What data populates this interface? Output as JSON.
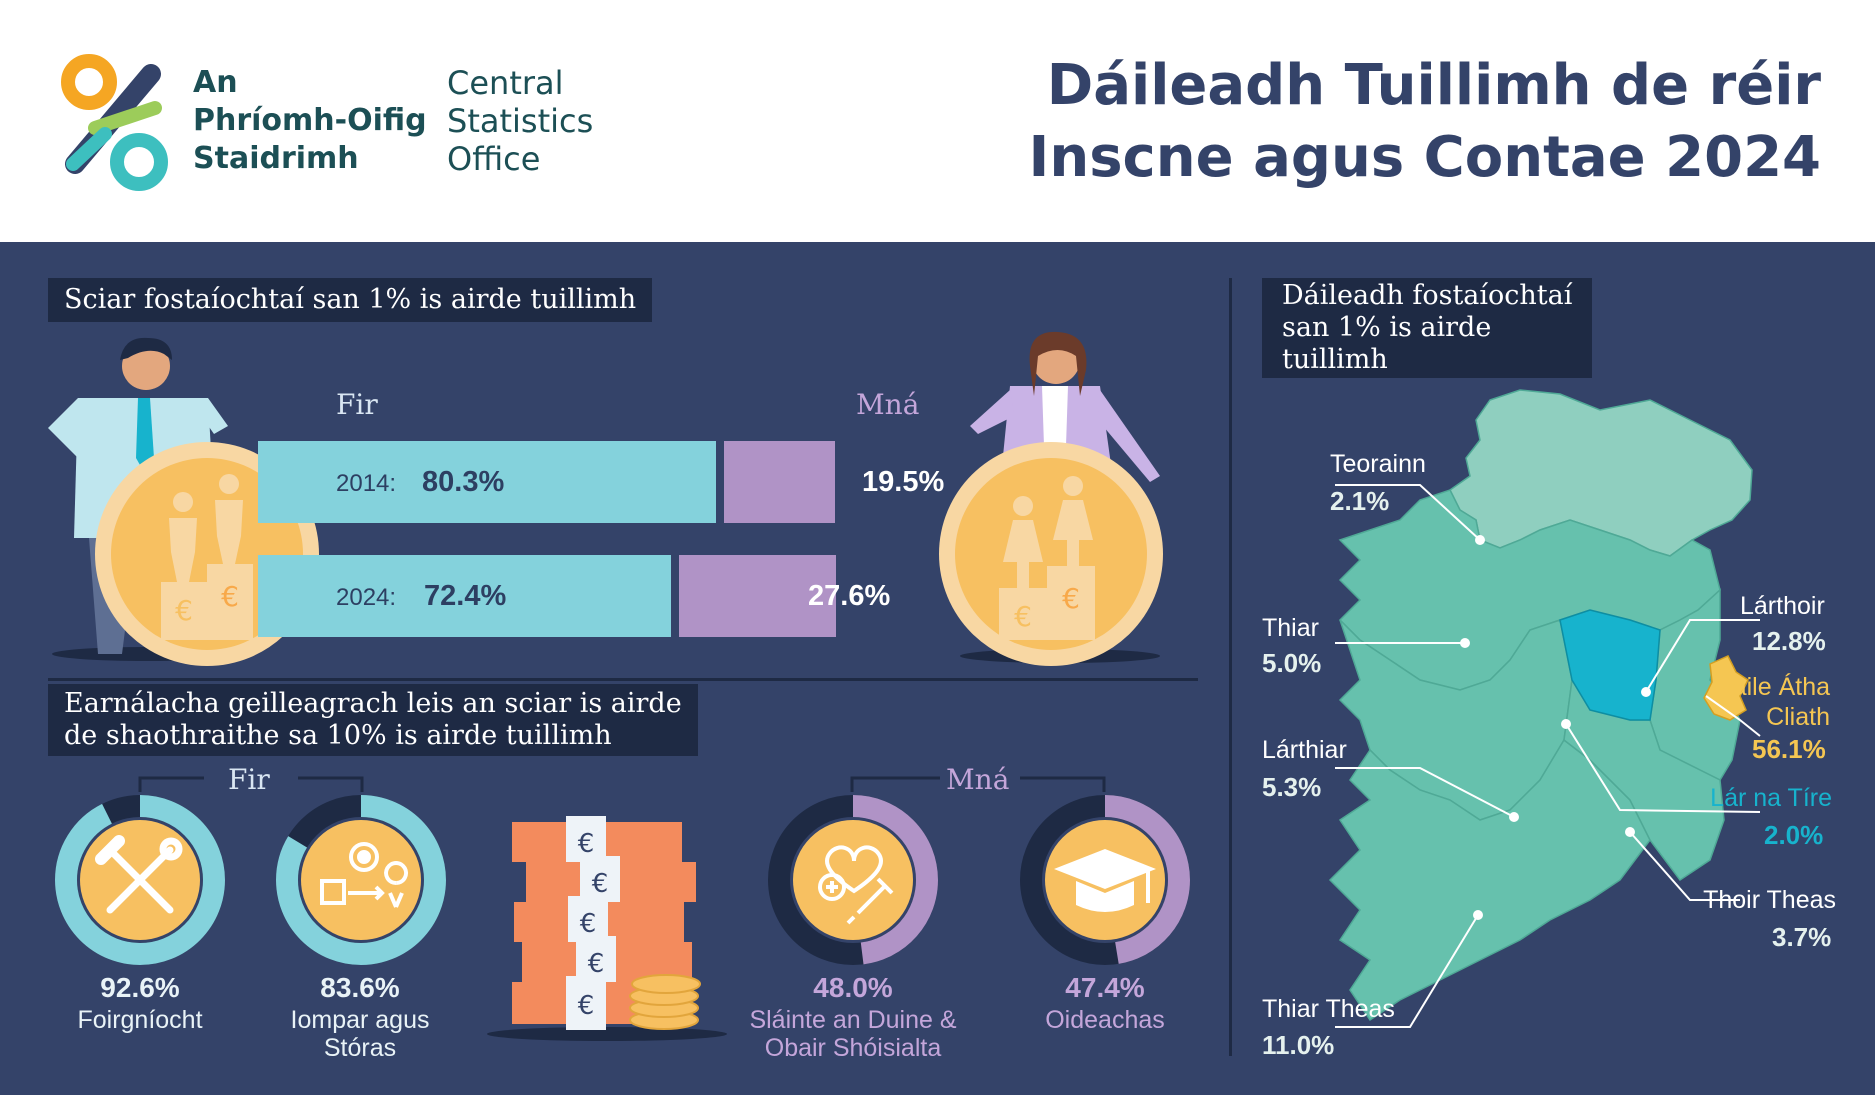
{
  "header": {
    "logo_irish_lines": [
      "An",
      "Phríomh-Oifig",
      "Staidrimh"
    ],
    "logo_english_lines": [
      "Central",
      "Statistics",
      "Office"
    ],
    "title_lines": [
      "Dáileadh Tuillimh de réir",
      "Inscne agus Contae 2024"
    ]
  },
  "top_share": {
    "section_label": "Sciar fostaíochtaí san 1% is airde tuillimh",
    "men_label": "Fir",
    "women_label": "Mná",
    "rows": [
      {
        "year": "2014:",
        "men_value": 80.3,
        "men_pct": "80.3%",
        "women_value": 19.5,
        "women_pct": "19.5%"
      },
      {
        "year": "2024:",
        "men_value": 72.4,
        "men_pct": "72.4%",
        "women_value": 27.6,
        "women_pct": "27.6%"
      }
    ],
    "colors": {
      "men": "#84d2dc",
      "women": "#b093c6"
    }
  },
  "sectors": {
    "section_label_lines": [
      "Earnálacha geilleagrach leis an sciar is airde",
      "de shaothraithe sa 10% is airde tuillimh"
    ],
    "men_label": "Fir",
    "women_label": "Mná",
    "items": [
      {
        "name_lines": [
          "Foirgníocht"
        ],
        "pct": "92.6%",
        "value": 92.6,
        "group": "men",
        "icon": "hammer-wrench-icon"
      },
      {
        "name_lines": [
          "Iompar agus",
          "Stóras"
        ],
        "pct": "83.6%",
        "value": 83.6,
        "group": "men",
        "icon": "transport-gear-icon"
      },
      {
        "name_lines": [
          "Sláinte an Duine &",
          "Obair Shóisialta"
        ],
        "pct": "48.0%",
        "value": 48.0,
        "group": "women",
        "icon": "health-heart-icon"
      },
      {
        "name_lines": [
          "Oideachas"
        ],
        "pct": "47.4%",
        "value": 47.4,
        "group": "women",
        "icon": "graduation-cap-icon"
      }
    ]
  },
  "map": {
    "section_label_lines": [
      "Dáileadh fostaíochtaí",
      "san 1% is airde",
      "tuillimh"
    ],
    "regions": [
      {
        "name": "Teorainn",
        "pct": "2.1%"
      },
      {
        "name": "Thiar",
        "pct": "5.0%"
      },
      {
        "name": "Lárthiar",
        "pct": "5.3%"
      },
      {
        "name": "Thiar Theas",
        "pct": "11.0%"
      },
      {
        "name": "Lárthoir",
        "pct": "12.8%"
      },
      {
        "name": "Baile Átha Cliath",
        "name_lines": [
          "Baile Átha",
          "Cliath"
        ],
        "pct": "56.1%"
      },
      {
        "name": "Lár na Tíre",
        "pct": "2.0%"
      },
      {
        "name": "Thoir Theas",
        "pct": "3.7%"
      }
    ],
    "colors": {
      "dublin": "#f5c652",
      "midlands": "#17b3cd",
      "border": "#8fcfbf",
      "other": "#66c1ad"
    }
  }
}
